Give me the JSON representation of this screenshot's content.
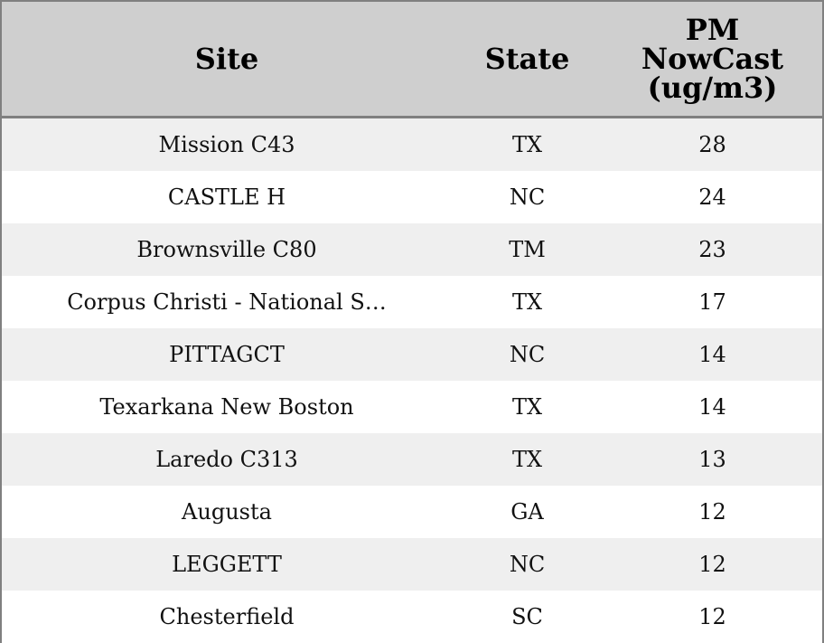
{
  "table": {
    "header": [
      "Site",
      "State",
      "PM NowCast (ug/m3)"
    ],
    "rows": [
      [
        "Mission C43",
        "TX",
        28
      ],
      [
        "CASTLE H",
        "NC",
        24
      ],
      [
        "Brownsville C80",
        "TM",
        23
      ],
      [
        "Corpus Christi - National S…",
        "TX",
        17
      ],
      [
        "PITTAGCT",
        "NC",
        14
      ],
      [
        "Texarkana New Boston",
        "TX",
        14
      ],
      [
        "Laredo C313",
        "TX",
        13
      ],
      [
        "Augusta",
        "GA",
        12
      ],
      [
        "LEGGETT",
        "NC",
        12
      ],
      [
        "Chesterfield",
        "SC",
        12
      ]
    ]
  }
}
